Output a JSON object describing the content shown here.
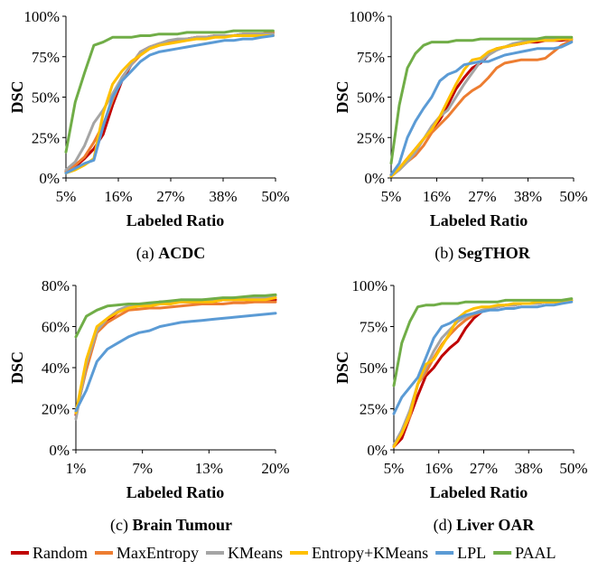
{
  "legend": [
    {
      "label": "Random",
      "color": "#C00000"
    },
    {
      "label": "MaxEntropy",
      "color": "#ED7D31"
    },
    {
      "label": "KMeans",
      "color": "#A5A5A5"
    },
    {
      "label": "Entropy+KMeans",
      "color": "#FFC000"
    },
    {
      "label": "LPL",
      "color": "#5B9BD5"
    },
    {
      "label": "PAAL",
      "color": "#70AD47"
    }
  ],
  "chart_data": [
    {
      "type": "line",
      "caption_prefix": "(a) ",
      "caption_bold": "ACDC",
      "xlabel": "Labeled Ratio",
      "ylabel": "DSC",
      "xticks": [
        "5%",
        "16%",
        "27%",
        "38%",
        "50%"
      ],
      "yticks": [
        "0%",
        "25%",
        "50%",
        "75%",
        "100%"
      ],
      "xlim": [
        5,
        50
      ],
      "ylim": [
        0,
        100
      ],
      "x": [
        5,
        7,
        9,
        11,
        13,
        15,
        17,
        19,
        21,
        23,
        25,
        27,
        29,
        31,
        33,
        35,
        37,
        39,
        41,
        43,
        45,
        47,
        49.5
      ],
      "series": [
        {
          "name": "Random",
          "values": [
            4,
            7,
            12,
            18,
            27,
            45,
            60,
            70,
            78,
            81,
            83,
            84,
            85,
            86,
            87,
            87,
            88,
            88,
            88,
            89,
            89,
            89,
            90
          ]
        },
        {
          "name": "MaxEntropy",
          "values": [
            4,
            8,
            13,
            22,
            33,
            48,
            62,
            70,
            76,
            80,
            82,
            84,
            85,
            86,
            87,
            87,
            88,
            88,
            88,
            89,
            89,
            89,
            90
          ]
        },
        {
          "name": "KMeans",
          "values": [
            5,
            10,
            20,
            34,
            42,
            52,
            62,
            70,
            78,
            81,
            83,
            85,
            86,
            86,
            87,
            87,
            88,
            88,
            88,
            89,
            89,
            89,
            89
          ]
        },
        {
          "name": "Entropy+KMeans",
          "values": [
            3,
            5,
            8,
            12,
            40,
            58,
            66,
            72,
            76,
            80,
            82,
            83,
            84,
            85,
            86,
            86,
            87,
            87,
            88,
            88,
            88,
            88,
            88
          ]
        },
        {
          "name": "LPL",
          "values": [
            3,
            6,
            9,
            11,
            32,
            50,
            60,
            66,
            72,
            76,
            78,
            79,
            80,
            81,
            82,
            83,
            84,
            85,
            85,
            86,
            86,
            87,
            88
          ]
        },
        {
          "name": "PAAL",
          "values": [
            16,
            47,
            65,
            82,
            84,
            87,
            87,
            87,
            88,
            88,
            89,
            89,
            89,
            90,
            90,
            90,
            90,
            90,
            91,
            91,
            91,
            91,
            91
          ]
        }
      ]
    },
    {
      "type": "line",
      "caption_prefix": "(b) ",
      "caption_bold": "SegTHOR",
      "xlabel": "Labeled Ratio",
      "ylabel": "DSC",
      "xticks": [
        "5%",
        "16%",
        "27%",
        "38%",
        "50%"
      ],
      "yticks": [
        "0%",
        "25%",
        "50%",
        "75%",
        "100%"
      ],
      "xlim": [
        5,
        50
      ],
      "ylim": [
        0,
        100
      ],
      "x": [
        5,
        7,
        9,
        11,
        13,
        15,
        17,
        19,
        21,
        23,
        25,
        27,
        29,
        31,
        33,
        35,
        37,
        39,
        41,
        43,
        45,
        47,
        49.5
      ],
      "series": [
        {
          "name": "Random",
          "values": [
            2,
            6,
            12,
            18,
            24,
            30,
            36,
            45,
            55,
            62,
            68,
            71,
            76,
            80,
            81,
            82,
            83,
            84,
            84,
            85,
            85,
            85,
            86
          ]
        },
        {
          "name": "MaxEntropy",
          "values": [
            2,
            5,
            10,
            14,
            20,
            28,
            33,
            38,
            44,
            50,
            54,
            57,
            62,
            68,
            71,
            72,
            73,
            73,
            73,
            74,
            78,
            82,
            85
          ]
        },
        {
          "name": "KMeans",
          "values": [
            1,
            5,
            10,
            16,
            24,
            32,
            38,
            42,
            50,
            58,
            65,
            72,
            76,
            79,
            81,
            83,
            84,
            85,
            85,
            86,
            86,
            86,
            86
          ]
        },
        {
          "name": "Entropy+KMeans",
          "values": [
            1,
            6,
            12,
            18,
            24,
            30,
            38,
            48,
            58,
            67,
            73,
            74,
            78,
            80,
            81,
            82,
            83,
            84,
            85,
            85,
            85,
            86,
            86
          ]
        },
        {
          "name": "LPL",
          "values": [
            2,
            9,
            25,
            35,
            43,
            50,
            60,
            64,
            66,
            70,
            71,
            72,
            72,
            74,
            76,
            77,
            78,
            79,
            80,
            80,
            80,
            81,
            84
          ]
        },
        {
          "name": "PAAL",
          "values": [
            9,
            45,
            68,
            77,
            82,
            84,
            84,
            84,
            85,
            85,
            85,
            86,
            86,
            86,
            86,
            86,
            86,
            86,
            86,
            87,
            87,
            87,
            87
          ]
        }
      ]
    },
    {
      "type": "line",
      "caption_prefix": "(c) ",
      "caption_bold": "Brain Tumour",
      "xlabel": "Labeled Ratio",
      "ylabel": "DSC",
      "xticks": [
        "1%",
        "7%",
        "13%",
        "20%"
      ],
      "yticks": [
        "0%",
        "20%",
        "40%",
        "60%",
        "80%"
      ],
      "xlim": [
        1,
        20
      ],
      "ylim": [
        0,
        80
      ],
      "x": [
        1,
        2,
        3,
        4,
        5,
        6,
        7,
        8,
        9,
        10,
        11,
        12,
        13,
        14,
        15,
        16,
        17,
        18,
        19,
        20
      ],
      "series": [
        {
          "name": "Random",
          "values": [
            17,
            40,
            58,
            63,
            67,
            70,
            71,
            71,
            72,
            72,
            72,
            72,
            72,
            72,
            73,
            73,
            73,
            73,
            73,
            73
          ]
        },
        {
          "name": "MaxEntropy",
          "values": [
            18,
            39,
            57,
            62,
            65,
            68,
            68.5,
            69,
            69,
            69.5,
            70,
            70.5,
            71,
            71,
            71,
            71.5,
            71.5,
            72,
            72,
            72
          ]
        },
        {
          "name": "KMeans",
          "values": [
            15,
            42,
            58,
            64,
            68,
            70,
            71,
            71,
            72,
            72,
            73,
            73,
            73,
            73,
            73,
            74,
            74,
            74,
            74,
            75
          ]
        },
        {
          "name": "Entropy+KMeans",
          "values": [
            18,
            44,
            60,
            64,
            67,
            69,
            70,
            70,
            71,
            71,
            72,
            72,
            72,
            72,
            73,
            73,
            73,
            73,
            73,
            74
          ]
        },
        {
          "name": "LPL",
          "values": [
            19,
            29,
            43,
            49,
            52,
            55,
            57,
            58,
            60,
            61,
            62,
            62.5,
            63,
            63.5,
            64,
            64.5,
            65,
            65.5,
            66,
            66.5
          ]
        },
        {
          "name": "PAAL",
          "values": [
            55,
            65,
            68,
            70,
            70.5,
            71,
            71,
            71.5,
            72,
            72.5,
            73,
            73,
            73,
            73.5,
            74,
            74,
            74.5,
            75,
            75,
            75.5
          ]
        }
      ]
    },
    {
      "type": "line",
      "caption_prefix": "(d) ",
      "caption_bold": "Liver OAR",
      "xlabel": "Labeled Ratio",
      "ylabel": "DSC",
      "xticks": [
        "5%",
        "16%",
        "27%",
        "38%",
        "50%"
      ],
      "yticks": [
        "0%",
        "25%",
        "50%",
        "75%",
        "100%"
      ],
      "xlim": [
        5,
        50
      ],
      "ylim": [
        0,
        100
      ],
      "x": [
        5,
        7,
        9,
        11,
        13,
        15,
        17,
        19,
        21,
        23,
        25,
        27,
        29,
        31,
        33,
        35,
        37,
        39,
        41,
        43,
        45,
        47,
        49.5
      ],
      "series": [
        {
          "name": "Random",
          "values": [
            2,
            7,
            20,
            33,
            45,
            50,
            57,
            62,
            66,
            74,
            80,
            84,
            86,
            87,
            88,
            88,
            89,
            89,
            89,
            90,
            90,
            90,
            91
          ]
        },
        {
          "name": "MaxEntropy",
          "values": [
            2,
            10,
            20,
            40,
            47,
            56,
            64,
            70,
            75,
            79,
            82,
            84,
            86,
            87,
            88,
            88,
            89,
            89,
            89,
            90,
            90,
            90,
            91
          ]
        },
        {
          "name": "KMeans",
          "values": [
            3,
            12,
            24,
            40,
            50,
            60,
            68,
            73,
            78,
            81,
            83,
            85,
            86,
            87,
            88,
            88,
            89,
            89,
            89,
            90,
            90,
            90,
            91
          ]
        },
        {
          "name": "Entropy+KMeans",
          "values": [
            2,
            10,
            22,
            40,
            52,
            55,
            63,
            71,
            80,
            84,
            86,
            87,
            87,
            88,
            88,
            89,
            89,
            89,
            90,
            90,
            90,
            90,
            91
          ]
        },
        {
          "name": "LPL",
          "values": [
            22,
            32,
            38,
            44,
            56,
            68,
            75,
            77,
            80,
            82,
            83,
            84,
            85,
            85,
            86,
            86,
            87,
            87,
            87,
            88,
            88,
            89,
            90
          ]
        },
        {
          "name": "PAAL",
          "values": [
            39,
            65,
            78,
            87,
            88,
            88,
            89,
            89,
            89,
            90,
            90,
            90,
            90,
            90,
            91,
            91,
            91,
            91,
            91,
            91,
            91,
            91,
            92
          ]
        }
      ]
    }
  ]
}
